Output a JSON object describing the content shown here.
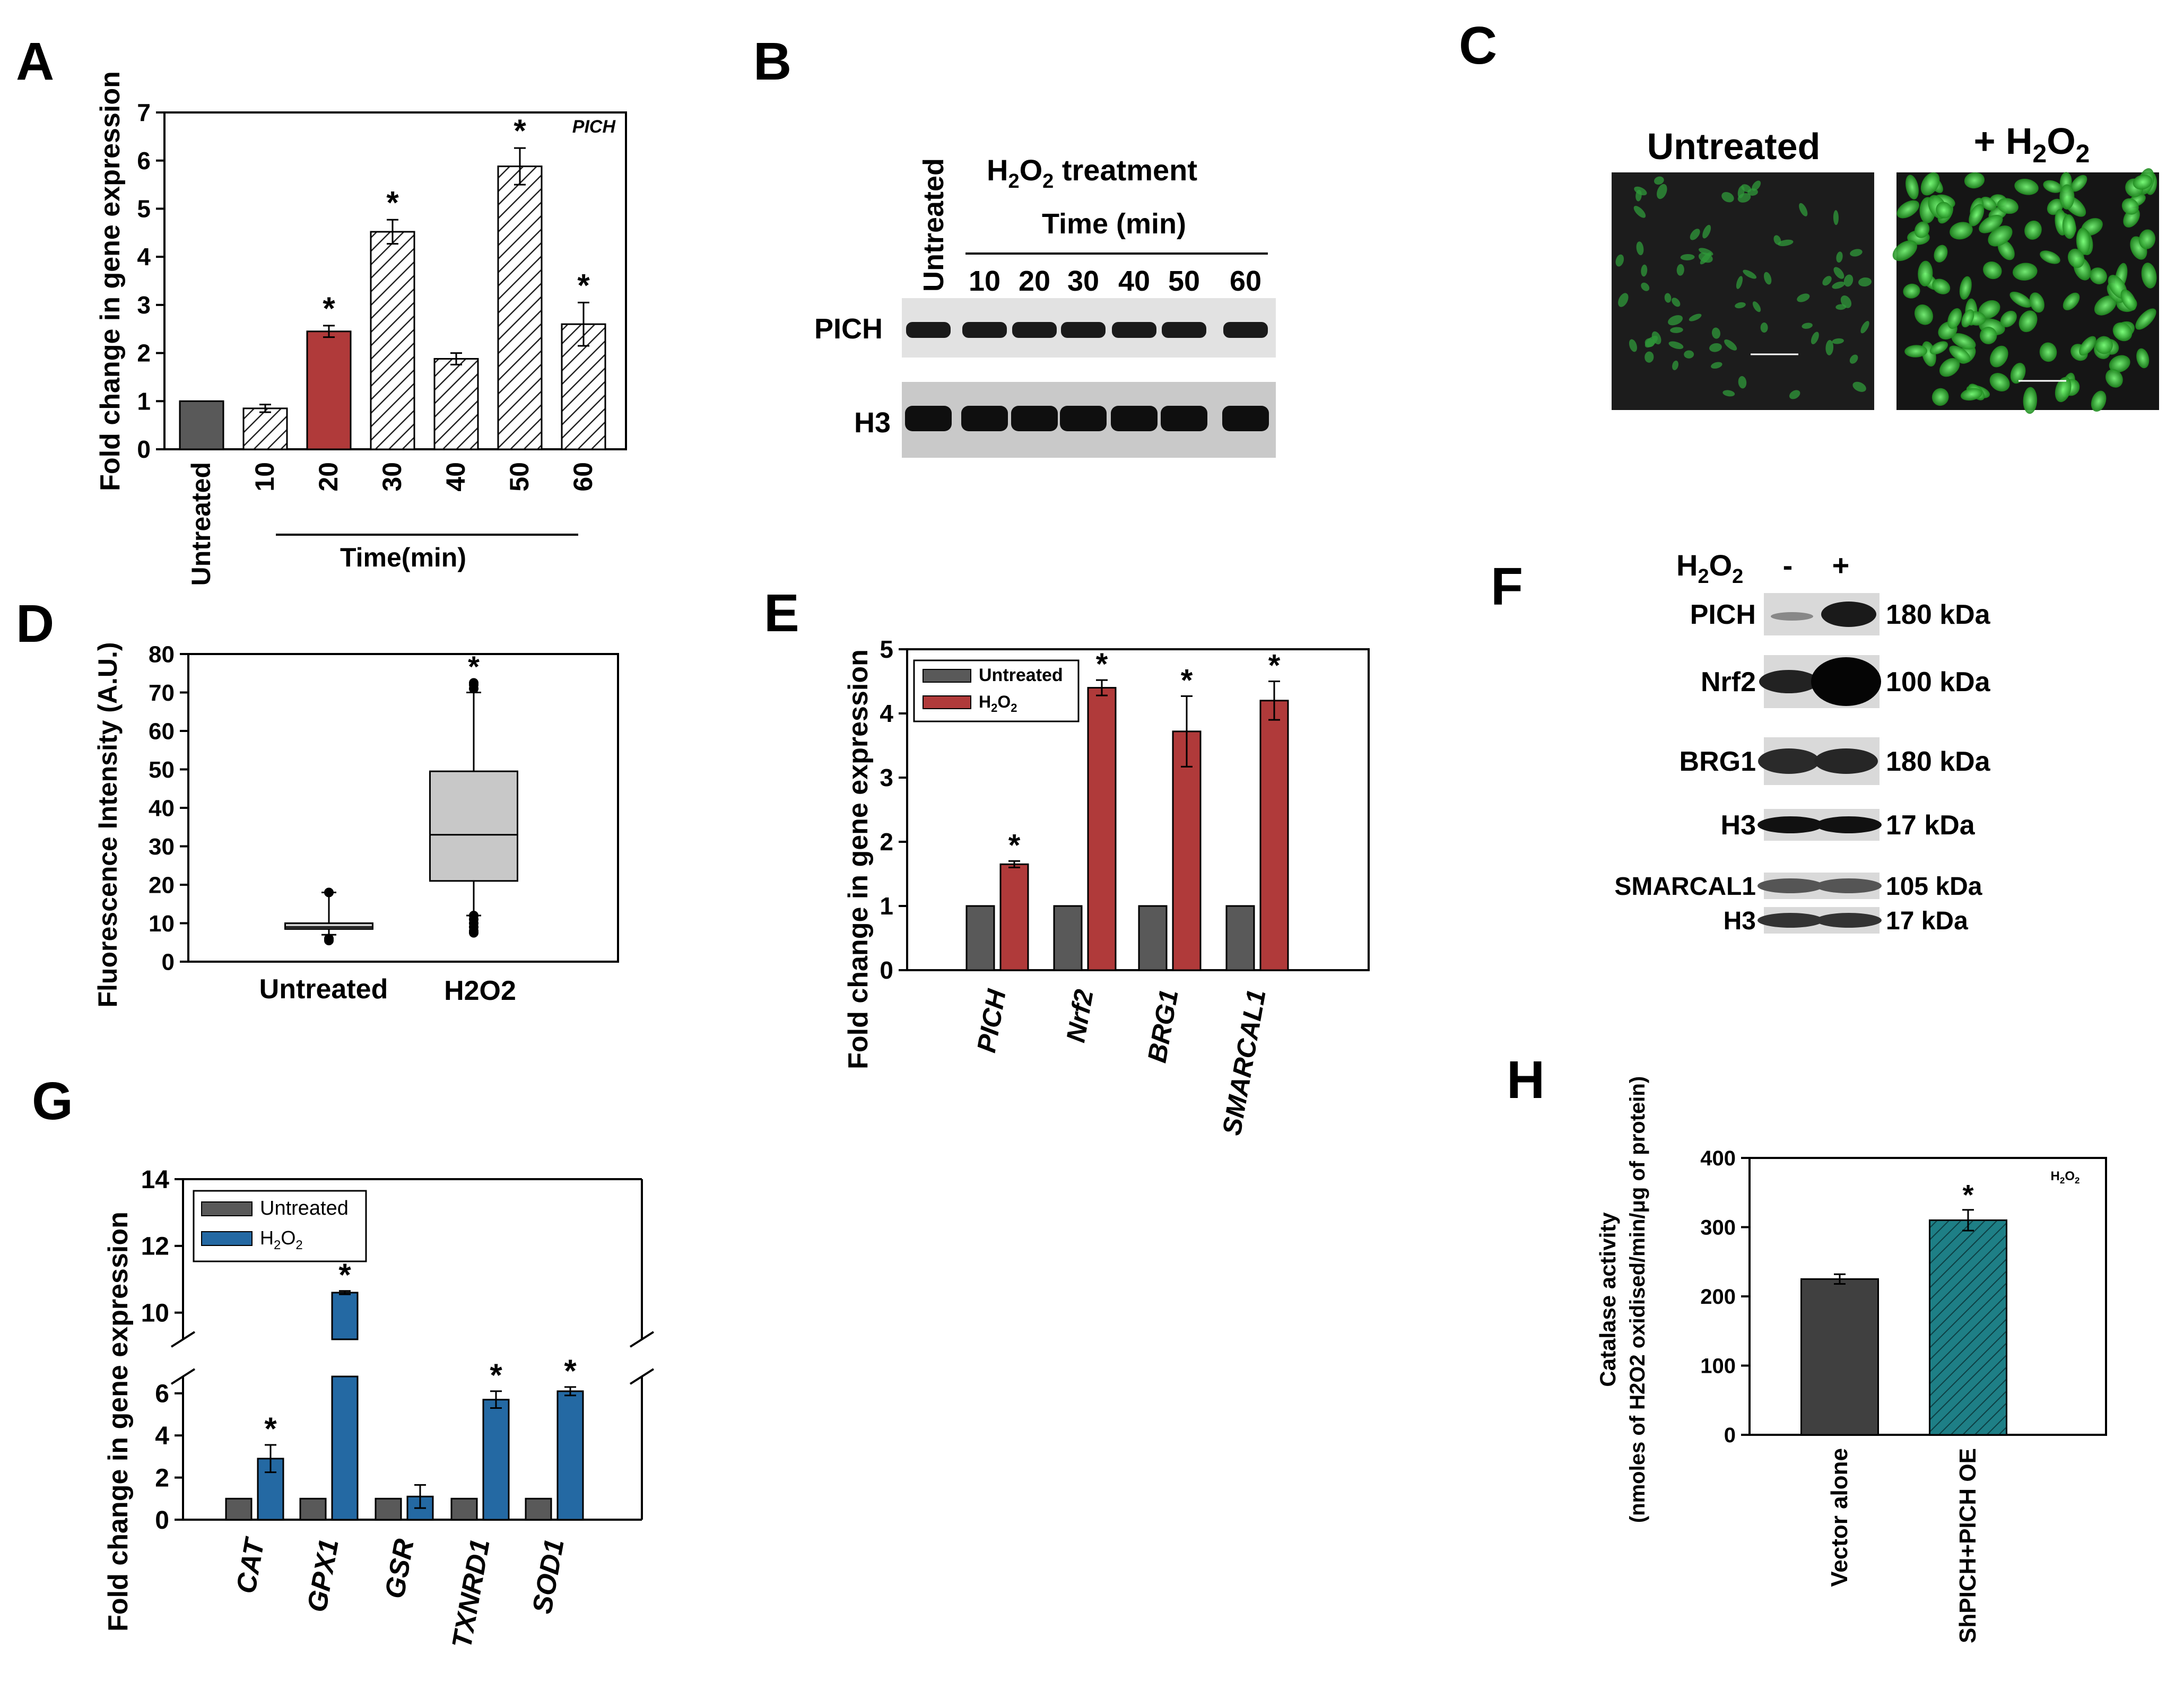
{
  "panel_letters": [
    "A",
    "B",
    "C",
    "D",
    "E",
    "F",
    "G",
    "H"
  ],
  "colors": {
    "gray_bar": "#595959",
    "red_bar": "#b03a3a",
    "blue_bar": "#2469a3",
    "teal_bar": "#1e7f86",
    "box_fill": "#c8c8c8",
    "blot_bg": "#dcdcdc",
    "fluor_green": "#3fbf3f"
  },
  "panel_b": {
    "untreated_label": "Untreated",
    "treatment_title": "H2O2 treatment",
    "time_label": "Time (min)",
    "lane_labels": [
      "10",
      "20",
      "30",
      "40",
      "50",
      "60"
    ],
    "rows": [
      "PICH",
      "H3"
    ]
  },
  "panel_c": {
    "labels": [
      "Untreated",
      "+ H2O2"
    ]
  },
  "panel_f": {
    "header_label": "H2O2",
    "lane_signs": [
      "-",
      "+"
    ],
    "rows": [
      {
        "name": "PICH",
        "size": "180 kDa"
      },
      {
        "name": "Nrf2",
        "size": "100 kDa"
      },
      {
        "name": "BRG1",
        "size": "180 kDa"
      },
      {
        "name": "H3",
        "size": "17 kDa"
      },
      {
        "name": "SMARCAL1",
        "size": "105 kDa"
      },
      {
        "name": "H3",
        "size": "17 kDa"
      }
    ]
  },
  "chart_data": [
    {
      "panel": "A",
      "type": "bar",
      "categories": [
        "Untreated",
        "10",
        "20",
        "30",
        "40",
        "50",
        "60"
      ],
      "values": [
        1.0,
        0.85,
        2.45,
        4.52,
        1.88,
        5.88,
        2.6
      ],
      "errors": [
        0,
        0.08,
        0.12,
        0.25,
        0.12,
        0.38,
        0.45
      ],
      "significant": [
        false,
        false,
        true,
        true,
        false,
        true,
        true
      ],
      "ylabel": "Fold change in gene expression",
      "xlabel": "Time(min)",
      "annotation": "PICH",
      "ylim": [
        0,
        7
      ],
      "yticks": [
        0,
        1,
        2,
        3,
        4,
        5,
        6,
        7
      ]
    },
    {
      "panel": "D",
      "type": "box",
      "categories": [
        "Untreated",
        "H2O2"
      ],
      "boxes": [
        {
          "whisker_low": 7,
          "q1": 8.5,
          "median": 9,
          "q3": 10,
          "whisker_high": 18,
          "outliers": [
            18,
            6,
            5.5
          ]
        },
        {
          "whisker_low": 12,
          "q1": 21,
          "median": 33,
          "q3": 49.5,
          "whisker_high": 70,
          "outliers": [
            72,
            72.5,
            71,
            12,
            11,
            10,
            9,
            8,
            7.5
          ]
        }
      ],
      "significant": [
        false,
        true
      ],
      "ylabel": "Fluorescence Intensity (A.U.)",
      "ylim": [
        0,
        80
      ],
      "yticks": [
        0,
        10,
        20,
        30,
        40,
        50,
        60,
        70,
        80
      ]
    },
    {
      "panel": "E",
      "type": "bar",
      "categories": [
        "PICH",
        "Nrf2",
        "BRG1",
        "SMARCAL1"
      ],
      "series": [
        {
          "name": "Untreated",
          "values": [
            1,
            1,
            1,
            1
          ],
          "errors": [
            0,
            0,
            0,
            0
          ]
        },
        {
          "name": "H2O2",
          "values": [
            1.65,
            4.4,
            3.72,
            4.2
          ],
          "errors": [
            0.05,
            0.12,
            0.55,
            0.3
          ]
        }
      ],
      "significant": [
        true,
        true,
        true,
        true
      ],
      "ylabel": "Fold change in gene expression",
      "ylim": [
        0,
        5
      ],
      "yticks": [
        0,
        1,
        2,
        3,
        4,
        5
      ]
    },
    {
      "panel": "G",
      "type": "bar",
      "categories": [
        "CAT",
        "GPX1",
        "GSR",
        "TXNRD1",
        "SOD1"
      ],
      "series": [
        {
          "name": "Untreated",
          "values": [
            1,
            1,
            1,
            1,
            1
          ],
          "errors": [
            0,
            0,
            0,
            0,
            0
          ]
        },
        {
          "name": "H2O2",
          "values": [
            2.9,
            10.6,
            1.1,
            5.7,
            6.1
          ],
          "errors": [
            0.65,
            0.05,
            0.55,
            0.4,
            0.2
          ]
        }
      ],
      "significant": [
        true,
        true,
        false,
        true,
        true
      ],
      "ylabel": "Fold change in gene expression",
      "axis_break": [
        6.8,
        9.2
      ],
      "ylim": [
        0,
        14
      ],
      "yticks_lower": [
        0,
        2,
        4,
        6
      ],
      "yticks_upper": [
        10,
        12,
        14
      ]
    },
    {
      "panel": "H",
      "type": "bar",
      "categories": [
        "Vector alone",
        "ShPICH+PICH OE"
      ],
      "values": [
        225,
        310
      ],
      "errors": [
        7,
        15
      ],
      "significant": [
        false,
        true
      ],
      "ylabel_line1": "Catalase activity",
      "ylabel_line2": "(nmoles of H2O2 oxidised/min/μg of protein)",
      "annotation": "H2O2",
      "ylim": [
        0,
        400
      ],
      "yticks": [
        0,
        100,
        200,
        300,
        400
      ]
    }
  ]
}
